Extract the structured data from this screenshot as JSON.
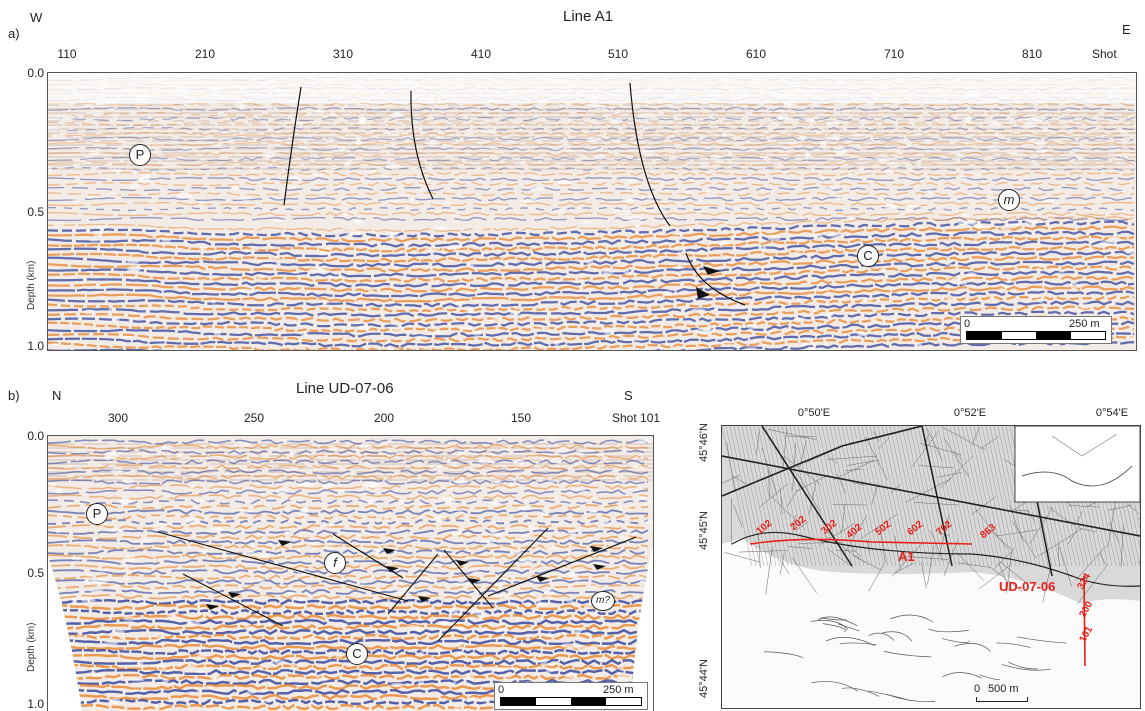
{
  "panel_a": {
    "letter": "a)",
    "title": "Line A1",
    "west": "W",
    "east": "E",
    "shots": [
      "110",
      "210",
      "310",
      "410",
      "510",
      "610",
      "710",
      "810"
    ],
    "shot_label": "Shot",
    "depths": [
      "0.0",
      "0.5",
      "1.0"
    ],
    "depth_axis": "Depth (km)",
    "markers": {
      "p": "P",
      "m": "m",
      "c": "C"
    },
    "scale": {
      "zero": "0",
      "dist": "250 m"
    }
  },
  "panel_b": {
    "letter": "b)",
    "title": "Line UD-07-06",
    "north": "N",
    "south": "S",
    "shots": [
      "300",
      "250",
      "200",
      "150"
    ],
    "shot_label": "Shot 101",
    "depths": [
      "0.0",
      "0.5",
      "1.0"
    ],
    "depth_axis": "Depth (km)",
    "markers": {
      "p": "P",
      "f": "f",
      "m": "m?",
      "c": "C"
    },
    "scale": {
      "zero": "0",
      "dist": "250 m"
    }
  },
  "map": {
    "lat": [
      "45°46'N",
      "45°45'N",
      "45°44'N"
    ],
    "lon": [
      "0°50'E",
      "0°52'E",
      "0°54'E"
    ],
    "a1_label": "A1",
    "ud_label": "UD-07-06",
    "a1_shots": [
      "102",
      "202",
      "302",
      "402",
      "502",
      "602",
      "702",
      "863"
    ],
    "ud_shots": [
      "324",
      "200",
      "101"
    ],
    "scale": {
      "zero": "0",
      "dist": "500 m"
    }
  },
  "colors": {
    "seismic_orange": "#e8832a",
    "seismic_blue": "#2c3f9a",
    "map_red": "#e8201a"
  }
}
